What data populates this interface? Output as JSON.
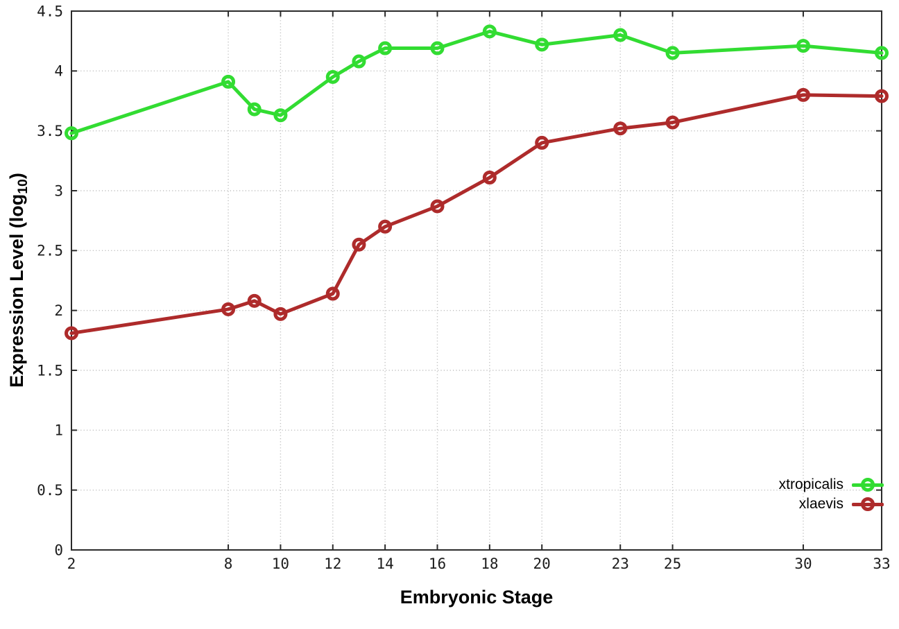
{
  "chart_data": {
    "type": "line",
    "title": "",
    "xlabel": "Embryonic Stage",
    "ylabel": "Expression Level (log10)",
    "ylabel_parts": [
      "Expression Level (log",
      "10",
      ")"
    ],
    "x": [
      2,
      8,
      9,
      10,
      12,
      13,
      14,
      16,
      18,
      20,
      23,
      25,
      30,
      33
    ],
    "series": [
      {
        "name": "xtropicalis",
        "color": "#32DC32",
        "marker": "open-circle",
        "values": [
          3.48,
          3.91,
          3.68,
          3.63,
          3.95,
          4.08,
          4.19,
          4.19,
          4.33,
          4.22,
          4.3,
          4.15,
          4.21,
          4.15
        ]
      },
      {
        "name": "xlaevis",
        "color": "#AE2B2B",
        "marker": "open-circle",
        "values": [
          1.81,
          2.01,
          2.08,
          1.97,
          2.14,
          2.55,
          2.7,
          2.87,
          3.11,
          3.4,
          3.52,
          3.57,
          3.8,
          3.79
        ]
      }
    ],
    "xlim": [
      2,
      33
    ],
    "ylim": [
      0,
      4.5
    ],
    "xticks": {
      "values": [
        2,
        8,
        10,
        12,
        14,
        16,
        18,
        20,
        23,
        25,
        30,
        33
      ],
      "labels": [
        "2",
        "8",
        "10",
        "12",
        "14",
        "16",
        "18",
        "20",
        "23",
        "25",
        "30",
        "33"
      ]
    },
    "yticks": {
      "values": [
        0,
        0.5,
        1,
        1.5,
        2,
        2.5,
        3,
        3.5,
        4,
        4.5
      ],
      "labels": [
        "0",
        "0.5",
        "1",
        "1.5",
        "2",
        "2.5",
        "3",
        "3.5",
        "4",
        "4.5"
      ]
    },
    "grid": true,
    "legend_position": "bottom-right"
  },
  "colors": {
    "background": "#FFFFFF",
    "grid": "#BFBFBF",
    "axis": "#2B2B2B",
    "xtropicalis": "#32DC32",
    "xlaevis": "#AE2B2B"
  }
}
